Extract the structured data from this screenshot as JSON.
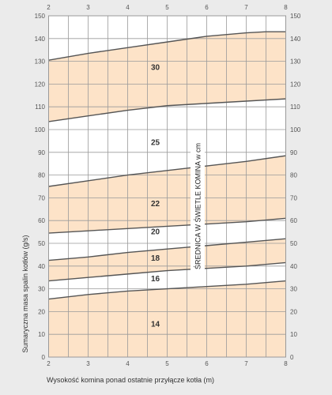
{
  "chart_data": {
    "type": "line",
    "xlabel": "Wysokość komina ponad ostatnie przyłącze kotła (m)",
    "ylabel": "Sumaryczna masa spalin kotłów (g/s)",
    "xlim": [
      2,
      8
    ],
    "ylim": [
      0,
      150
    ],
    "x_ticks": [
      "2",
      "3",
      "4",
      "5",
      "6",
      "7",
      "8"
    ],
    "y_ticks": [
      "0",
      "10",
      "20",
      "30",
      "40",
      "50",
      "60",
      "70",
      "80",
      "90",
      "100",
      "110",
      "120",
      "130",
      "140",
      "150"
    ],
    "grid": true,
    "vertical_label": "ŚREDNICA W ŚWIETLE KOMINA w cm",
    "band_fill": "#fde3c8",
    "line_color": "#555555",
    "grid_color": "#9a9a9a",
    "boundaries": [
      {
        "x": [
          2,
          3,
          4,
          5,
          6,
          7,
          8
        ],
        "y": [
          25.5,
          27.5,
          29,
          30,
          31,
          32,
          33.5
        ]
      },
      {
        "x": [
          2,
          3,
          4,
          5,
          6,
          7,
          8
        ],
        "y": [
          33.5,
          35,
          36.5,
          38,
          39,
          40,
          41.5
        ]
      },
      {
        "x": [
          2,
          3,
          4,
          5,
          6,
          7,
          8
        ],
        "y": [
          42.5,
          44,
          46,
          47.5,
          49,
          50.5,
          52
        ]
      },
      {
        "x": [
          2,
          3,
          4,
          5,
          6,
          7,
          8
        ],
        "y": [
          54.5,
          55.5,
          56.5,
          57.5,
          58.5,
          59.5,
          61
        ]
      },
      {
        "x": [
          2,
          3,
          4,
          5,
          6,
          7,
          8
        ],
        "y": [
          75,
          77.5,
          80,
          82,
          84,
          86,
          88.5
        ]
      },
      {
        "x": [
          2,
          3,
          4,
          5,
          6,
          7,
          8
        ],
        "y": [
          103.5,
          106,
          108.5,
          110.5,
          111.5,
          112.5,
          113.5
        ]
      },
      {
        "x": [
          2,
          3,
          4,
          5,
          6,
          7,
          7.5,
          8
        ],
        "y": [
          130.5,
          133.5,
          136,
          138.5,
          141,
          142.5,
          143,
          143
        ]
      }
    ],
    "filled_bands": [
      [
        0,
        0
      ],
      [
        1,
        2
      ],
      [
        3,
        4
      ],
      [
        5,
        6
      ]
    ],
    "band_labels": [
      {
        "text": "14",
        "x": 4.7,
        "y": 14.5
      },
      {
        "text": "16",
        "x": 4.7,
        "y": 34.5
      },
      {
        "text": "18",
        "x": 4.7,
        "y": 43.5
      },
      {
        "text": "20",
        "x": 4.7,
        "y": 55.2
      },
      {
        "text": "22",
        "x": 4.7,
        "y": 67.5
      },
      {
        "text": "25",
        "x": 4.7,
        "y": 94.5
      },
      {
        "text": "30",
        "x": 4.7,
        "y": 127.5
      }
    ]
  }
}
